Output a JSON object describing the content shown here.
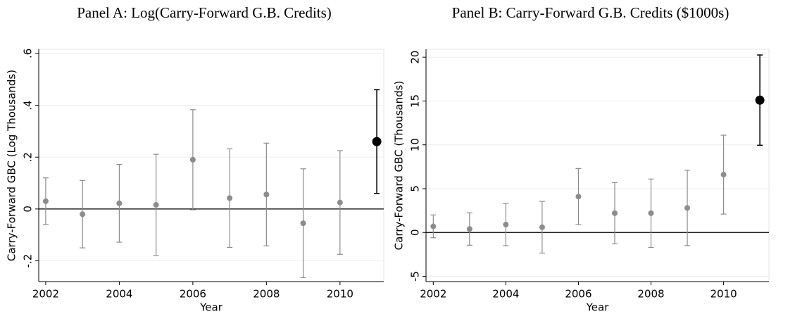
{
  "chart_data": [
    {
      "type": "errorbar",
      "title": "Panel A: Log(Carry-Forward G.B. Credits)",
      "x_label": "Year",
      "y_label": "Carry-Forward GBC (Log Thousands)",
      "x": [
        2002,
        2003,
        2004,
        2005,
        2006,
        2007,
        2008,
        2009,
        2010,
        2011
      ],
      "values": [
        0.03,
        -0.02,
        0.022,
        0.016,
        0.19,
        0.042,
        0.056,
        -0.055,
        0.025,
        0.26
      ],
      "errors": [
        0.09,
        0.13,
        0.15,
        0.195,
        0.193,
        0.19,
        0.198,
        0.21,
        0.2,
        0.2
      ],
      "colors": [
        "#8c8c8c",
        "#8c8c8c",
        "#8c8c8c",
        "#8c8c8c",
        "#8c8c8c",
        "#8c8c8c",
        "#8c8c8c",
        "#8c8c8c",
        "#8c8c8c",
        "#000000"
      ],
      "xlim": [
        2001.81,
        2011.19
      ],
      "xticks": [
        2002,
        2004,
        2006,
        2008,
        2010
      ],
      "ylim": [
        -0.28,
        0.616
      ],
      "yticks": [
        {
          "value": -0.2,
          "label": "-.2"
        },
        0,
        {
          "value": 0.2,
          "label": ".2"
        },
        {
          "value": 0.4,
          "label": ".4"
        },
        {
          "value": 0.6,
          "label": ".6"
        }
      ],
      "hline": 0,
      "grid": true
    },
    {
      "type": "errorbar",
      "title": "Panel B: Carry-Forward G.B. Credits ($1000s)",
      "x_label": "Year",
      "y_label": "Carry-Forward GBC (Thousands)",
      "x": [
        2002,
        2003,
        2004,
        2005,
        2006,
        2007,
        2008,
        2009,
        2010,
        2011
      ],
      "values": [
        0.7,
        0.4,
        0.9,
        0.6,
        4.1,
        2.2,
        2.2,
        2.8,
        6.6,
        15.1
      ],
      "errors": [
        1.3,
        1.85,
        2.4,
        2.95,
        3.2,
        3.5,
        3.9,
        4.3,
        4.5,
        5.15
      ],
      "colors": [
        "#8c8c8c",
        "#8c8c8c",
        "#8c8c8c",
        "#8c8c8c",
        "#8c8c8c",
        "#8c8c8c",
        "#8c8c8c",
        "#8c8c8c",
        "#8c8c8c",
        "#000000"
      ],
      "xlim": [
        2001.8,
        2011.25
      ],
      "xticks": [
        2002,
        2004,
        2006,
        2008,
        2010
      ],
      "ylim": [
        -5.6,
        20.9
      ],
      "yticks": [
        -5,
        0,
        5,
        10,
        15,
        20
      ],
      "hline": 0,
      "grid": true
    }
  ]
}
